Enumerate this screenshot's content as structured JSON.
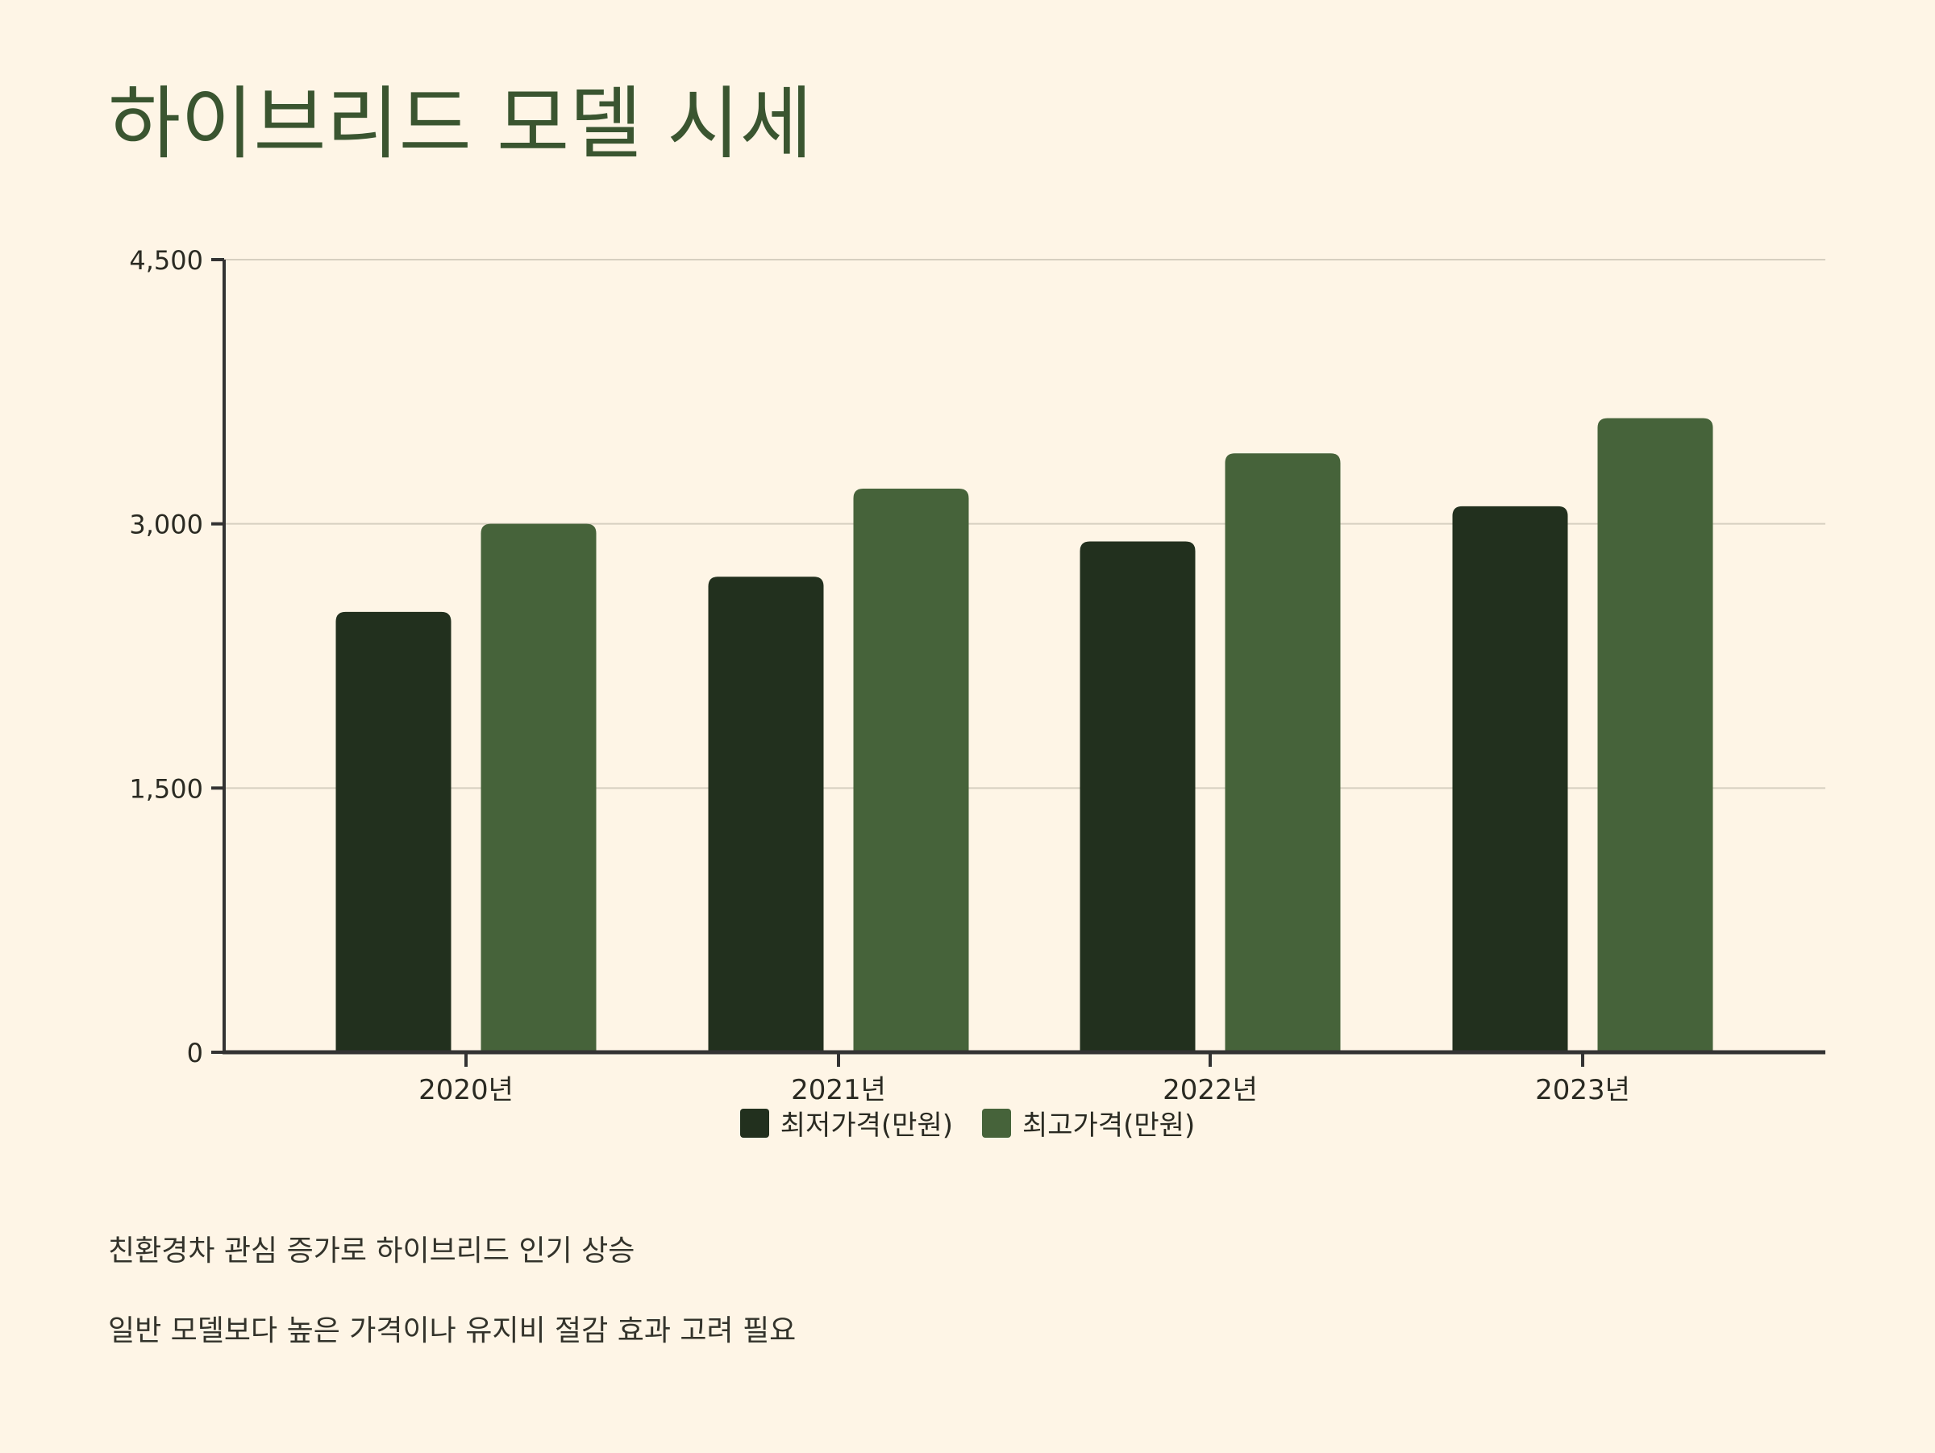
{
  "title": "하이브리드 모델 시세",
  "notes": [
    "친환경차 관심 증가로 하이브리드 인기 상승",
    "일반 모델보다 높은 가격이나 유지비 절감 효과 고려 필요"
  ],
  "colors": {
    "background": "#FEF5E6",
    "title": "#3A5530",
    "series_min": "#22301E",
    "series_max": "#46633A",
    "grid": "#D6CFC0",
    "axis": "#333333"
  },
  "chart_data": {
    "type": "bar",
    "categories": [
      "2020년",
      "2021년",
      "2022년",
      "2023년"
    ],
    "series": [
      {
        "name": "최저가격(만원)",
        "values": [
          2500,
          2700,
          2900,
          3100
        ]
      },
      {
        "name": "최고가격(만원)",
        "values": [
          3000,
          3200,
          3400,
          3600
        ]
      }
    ],
    "yticks": [
      0,
      1500,
      3000,
      4500
    ],
    "ytick_labels": [
      "0",
      "1,500",
      "3,000",
      "4,500"
    ],
    "ylim": [
      0,
      4500
    ],
    "grid": true,
    "legend_position": "bottom-center"
  }
}
